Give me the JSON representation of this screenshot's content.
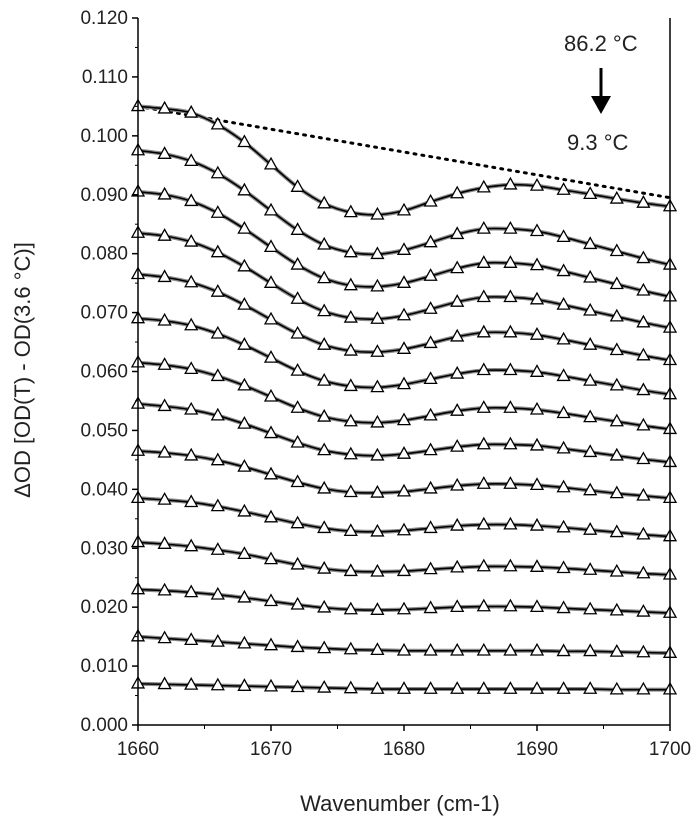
{
  "chart_data": {
    "type": "line",
    "xlabel": "Wavenumber (cm-1)",
    "ylabel": "ΔOD [OD(T) - OD(3.6 °C)]",
    "xlim": [
      1660,
      1700
    ],
    "ylim": [
      0,
      0.12
    ],
    "xticks": [
      "1660",
      "1670",
      "1680",
      "1690",
      "1700"
    ],
    "yticks": [
      "0.000",
      "0.010",
      "0.020",
      "0.030",
      "0.040",
      "0.050",
      "0.060",
      "0.070",
      "0.080",
      "0.090",
      "0.100",
      "0.110",
      "0.120"
    ],
    "x": [
      1660,
      1662,
      1664,
      1666,
      1668,
      1670,
      1672,
      1674,
      1676,
      1678,
      1680,
      1682,
      1684,
      1686,
      1688,
      1690,
      1692,
      1694,
      1696,
      1698,
      1700
    ],
    "series": [
      {
        "values": [
          0.007,
          0.0069,
          0.0068,
          0.0067,
          0.0066,
          0.0065,
          0.0064,
          0.0063,
          0.0062,
          0.0061,
          0.0061,
          0.0061,
          0.0061,
          0.0061,
          0.0061,
          0.0061,
          0.0061,
          0.0061,
          0.006,
          0.006,
          0.006
        ]
      },
      {
        "values": [
          0.015,
          0.0147,
          0.0144,
          0.0141,
          0.0138,
          0.0135,
          0.0132,
          0.013,
          0.0128,
          0.0127,
          0.0126,
          0.0126,
          0.0126,
          0.0126,
          0.0126,
          0.0126,
          0.0125,
          0.0125,
          0.0124,
          0.0123,
          0.0122
        ]
      },
      {
        "values": [
          0.023,
          0.0228,
          0.0225,
          0.0221,
          0.0216,
          0.021,
          0.0204,
          0.0199,
          0.0196,
          0.0195,
          0.0196,
          0.0198,
          0.02,
          0.0201,
          0.0201,
          0.02,
          0.0198,
          0.0196,
          0.0194,
          0.0192,
          0.019
        ]
      },
      {
        "values": [
          0.031,
          0.0307,
          0.0303,
          0.0297,
          0.029,
          0.0281,
          0.0272,
          0.0265,
          0.0261,
          0.026,
          0.0261,
          0.0264,
          0.0267,
          0.0269,
          0.0269,
          0.0268,
          0.0266,
          0.0263,
          0.026,
          0.0257,
          0.0255
        ]
      },
      {
        "values": [
          0.0385,
          0.0382,
          0.0378,
          0.0371,
          0.0362,
          0.0352,
          0.0342,
          0.0334,
          0.0329,
          0.0328,
          0.033,
          0.0334,
          0.0338,
          0.034,
          0.034,
          0.0338,
          0.0335,
          0.0331,
          0.0327,
          0.0323,
          0.032
        ]
      },
      {
        "values": [
          0.0465,
          0.0462,
          0.0457,
          0.0449,
          0.0438,
          0.0425,
          0.0412,
          0.0401,
          0.0395,
          0.0394,
          0.0396,
          0.0401,
          0.0406,
          0.0409,
          0.0409,
          0.0407,
          0.0403,
          0.0398,
          0.0393,
          0.0389,
          0.0385
        ]
      },
      {
        "values": [
          0.0545,
          0.0541,
          0.0535,
          0.0525,
          0.0511,
          0.0495,
          0.0479,
          0.0466,
          0.0459,
          0.0457,
          0.046,
          0.0466,
          0.0472,
          0.0476,
          0.0476,
          0.0474,
          0.0469,
          0.0463,
          0.0457,
          0.0451,
          0.0446
        ]
      },
      {
        "values": [
          0.0615,
          0.0611,
          0.0604,
          0.0592,
          0.0576,
          0.0557,
          0.0538,
          0.0523,
          0.0515,
          0.0513,
          0.0517,
          0.0525,
          0.0533,
          0.0538,
          0.0538,
          0.0535,
          0.0529,
          0.0522,
          0.0515,
          0.0508,
          0.0502
        ]
      },
      {
        "values": [
          0.069,
          0.0686,
          0.0678,
          0.0664,
          0.0645,
          0.0623,
          0.0601,
          0.0584,
          0.0575,
          0.0573,
          0.0578,
          0.0587,
          0.0596,
          0.0602,
          0.0602,
          0.0599,
          0.0592,
          0.0584,
          0.0576,
          0.0568,
          0.0561
        ]
      },
      {
        "values": [
          0.0765,
          0.076,
          0.0751,
          0.0735,
          0.0713,
          0.0688,
          0.0664,
          0.0645,
          0.0635,
          0.0633,
          0.0638,
          0.0648,
          0.0659,
          0.0666,
          0.0666,
          0.0662,
          0.0654,
          0.0645,
          0.0636,
          0.0627,
          0.0619
        ]
      },
      {
        "values": [
          0.0835,
          0.083,
          0.082,
          0.0802,
          0.0778,
          0.075,
          0.0723,
          0.0702,
          0.0691,
          0.0689,
          0.0695,
          0.0706,
          0.0718,
          0.0726,
          0.0726,
          0.0722,
          0.0713,
          0.0703,
          0.0693,
          0.0683,
          0.0674
        ]
      },
      {
        "values": [
          0.0905,
          0.09,
          0.0889,
          0.0869,
          0.0842,
          0.0811,
          0.0781,
          0.0758,
          0.0746,
          0.0744,
          0.075,
          0.0762,
          0.0775,
          0.0784,
          0.0784,
          0.078,
          0.077,
          0.0759,
          0.0748,
          0.0737,
          0.0727
        ]
      },
      {
        "values": [
          0.0975,
          0.0969,
          0.0957,
          0.0936,
          0.0907,
          0.0873,
          0.084,
          0.0815,
          0.0802,
          0.0799,
          0.0806,
          0.0819,
          0.0833,
          0.0842,
          0.0842,
          0.0838,
          0.0828,
          0.0816,
          0.0804,
          0.0792,
          0.0781
        ]
      },
      {
        "values": [
          0.105,
          0.1046,
          0.1039,
          0.1019,
          0.0989,
          0.0951,
          0.0913,
          0.0885,
          0.087,
          0.0866,
          0.0873,
          0.0888,
          0.0902,
          0.0912,
          0.0917,
          0.0915,
          0.0908,
          0.0901,
          0.0893,
          0.0886,
          0.088
        ]
      }
    ],
    "envelope": {
      "x": [
        1660,
        1700
      ],
      "values": [
        0.105,
        0.0895
      ]
    },
    "annotations": {
      "top_label": "86.2 °C",
      "bottom_label": "9.3 °C"
    },
    "marker": "open-triangle",
    "grid": false,
    "legend": "none"
  }
}
